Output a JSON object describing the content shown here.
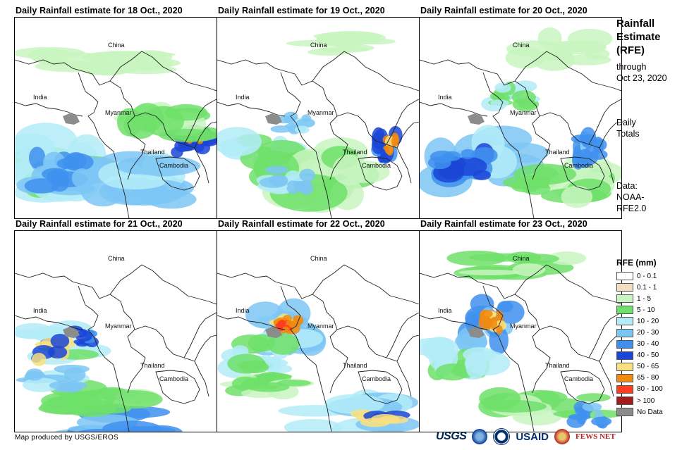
{
  "panels": [
    {
      "title": "Daily Rainfall estimate for 18 Oct., 2020"
    },
    {
      "title": "Daily Rainfall estimate for 19 Oct., 2020"
    },
    {
      "title": "Daily Rainfall estimate for 20 Oct., 2020"
    },
    {
      "title": "Daily Rainfall estimate for 21 Oct., 2020"
    },
    {
      "title": "Daily Rainfall estimate for 22 Oct., 2020"
    },
    {
      "title": "Daily Rainfall estimate for 23 Oct., 2020"
    }
  ],
  "map_labels": {
    "china": "China",
    "india": "India",
    "myanmar": "Myanmar",
    "thailand": "Thailand",
    "cambodia": "Cambodia"
  },
  "side": {
    "title_line1": "Rainfall",
    "title_line2": "Estimate",
    "title_line3": "(RFE)",
    "through": "through",
    "date": "Oct 23, 2020",
    "daily1": "Daily",
    "daily2": "Totals",
    "data1": "Data:",
    "data2": "NOAA-",
    "data3": "RFE2.0"
  },
  "legend": {
    "title": "RFE (mm)",
    "items": [
      {
        "label": "0 - 0.1",
        "color": "#ffffff"
      },
      {
        "label": "0.1 - 1",
        "color": "#f2dfc0"
      },
      {
        "label": "1 - 5",
        "color": "#c8f5c0"
      },
      {
        "label": "5 - 10",
        "color": "#6fe06a"
      },
      {
        "label": "10 - 20",
        "color": "#b3ecf8"
      },
      {
        "label": "20 - 30",
        "color": "#7cc6f5"
      },
      {
        "label": "30 - 40",
        "color": "#3f90ee"
      },
      {
        "label": "40 - 50",
        "color": "#1b45d6"
      },
      {
        "label": "50 - 65",
        "color": "#f9e080"
      },
      {
        "label": "65 - 80",
        "color": "#f08a10"
      },
      {
        "label": "80 - 100",
        "color": "#ff3c1e"
      },
      {
        "label": "> 100",
        "color": "#a31a1a"
      },
      {
        "label": "No Data",
        "color": "#8c8c8c"
      }
    ]
  },
  "footer": "Map produced by USGS/EROS",
  "logos": {
    "usgs": "USGS",
    "usaid": "USAID",
    "fews": "FEWS NET"
  }
}
